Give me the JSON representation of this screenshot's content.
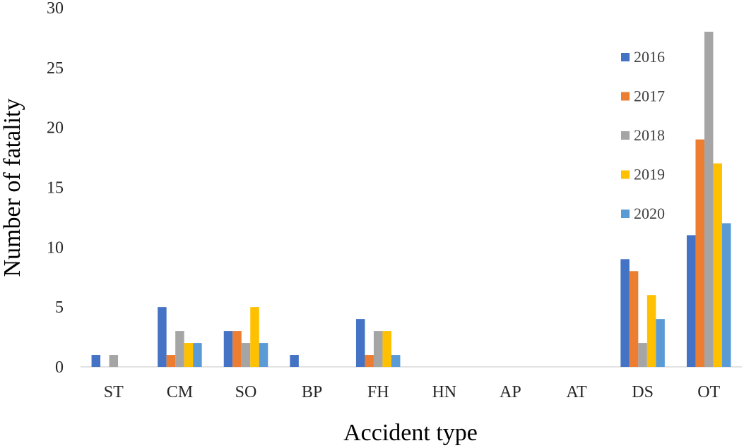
{
  "chart_data": {
    "type": "bar",
    "title": "",
    "xlabel": "Accident type",
    "ylabel": "Number of fatality",
    "ylim": [
      0,
      30
    ],
    "yticks": [
      0,
      5,
      10,
      15,
      20,
      25,
      30
    ],
    "grid": false,
    "legend_position": "top-right",
    "categories": [
      "ST",
      "CM",
      "SO",
      "BP",
      "FH",
      "HN",
      "AP",
      "AT",
      "DS",
      "OT"
    ],
    "series": [
      {
        "name": "2016",
        "color": "#4472C4",
        "values": [
          1,
          5,
          3,
          1,
          4,
          0,
          0,
          0,
          9,
          11
        ]
      },
      {
        "name": "2017",
        "color": "#ED7D31",
        "values": [
          0,
          1,
          3,
          0,
          1,
          0,
          0,
          0,
          8,
          19
        ]
      },
      {
        "name": "2018",
        "color": "#A5A5A5",
        "values": [
          1,
          3,
          2,
          0,
          3,
          0,
          0,
          0,
          2,
          28
        ]
      },
      {
        "name": "2019",
        "color": "#FFC000",
        "values": [
          0,
          2,
          5,
          0,
          3,
          0,
          0,
          0,
          6,
          17
        ]
      },
      {
        "name": "2020",
        "color": "#5B9BD5",
        "values": [
          0,
          2,
          2,
          0,
          1,
          0,
          0,
          0,
          4,
          12
        ]
      }
    ]
  }
}
